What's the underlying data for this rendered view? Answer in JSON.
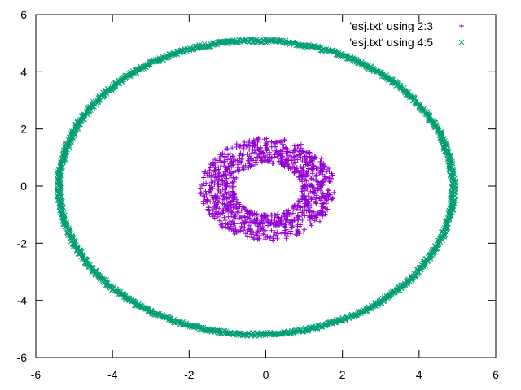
{
  "chart_data": {
    "type": "scatter",
    "xlim": [
      -6,
      6
    ],
    "ylim": [
      -6,
      6
    ],
    "xticks": [
      "-6",
      "-4",
      "-2",
      "0",
      "2",
      "4",
      "6"
    ],
    "yticks": [
      "-6",
      "-4",
      "-2",
      "0",
      "2",
      "4",
      "6"
    ],
    "grid": false,
    "legend_position": "top-right",
    "series": [
      {
        "name": "'esj.txt' using 2:3",
        "marker": "+",
        "color": "#9400d3",
        "shape": "annulus",
        "center": [
          0.05,
          -0.1
        ],
        "inner_radius": 0.9,
        "outer_radius": 1.8,
        "x_range": [
          -1.8,
          1.85
        ],
        "y_range": [
          -1.95,
          1.75
        ]
      },
      {
        "name": "'esj.txt' using 4:5",
        "marker": "x",
        "color": "#009e73",
        "shape": "ellipse",
        "center": [
          -0.25,
          -0.05
        ],
        "x_range": [
          -5.45,
          4.95
        ],
        "y_range": [
          -5.25,
          5.15
        ],
        "band_width": 0.12
      }
    ]
  }
}
